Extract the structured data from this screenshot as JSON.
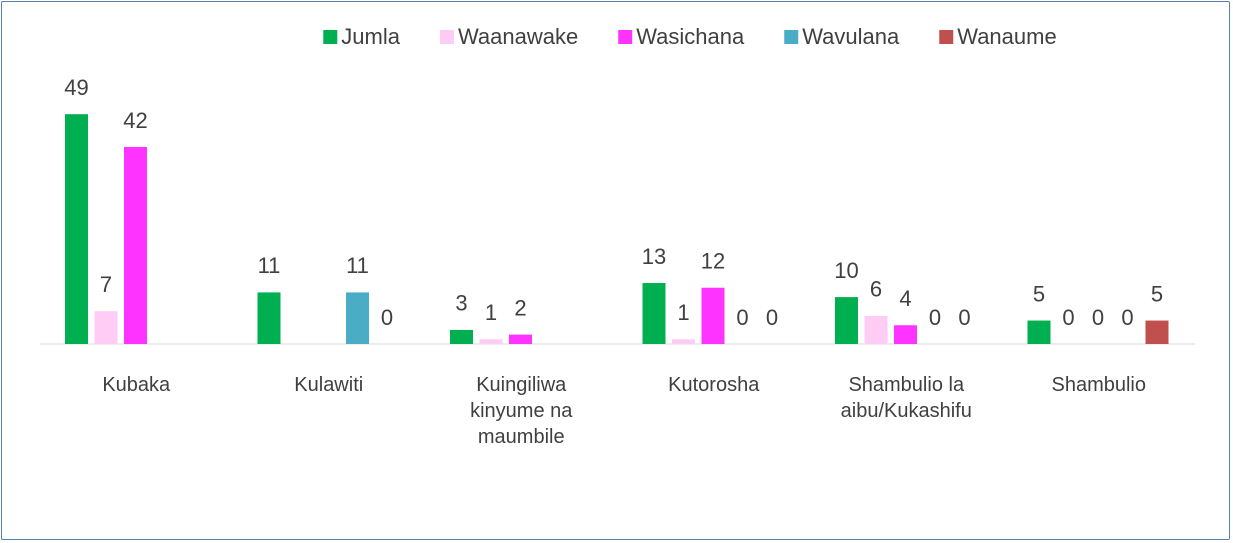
{
  "chart_data": {
    "type": "bar",
    "categories": [
      "Kubaka",
      "Kulawiti",
      "Kuingiliwa kinyume na maumbile",
      "Kutorosha",
      "Shambulio la aibu/Kukashifu",
      "Shambulio"
    ],
    "series": [
      {
        "name": "Jumla",
        "color": "#00b050",
        "values": [
          49,
          11,
          3,
          13,
          10,
          5
        ]
      },
      {
        "name": "Waanawake",
        "color": "#ffccf5",
        "values": [
          7,
          null,
          1,
          1,
          6,
          0
        ]
      },
      {
        "name": "Wasichana",
        "color": "#ff33ff",
        "values": [
          42,
          null,
          2,
          12,
          4,
          0
        ]
      },
      {
        "name": "Wavulana",
        "color": "#4bacc6",
        "values": [
          null,
          11,
          null,
          0,
          0,
          0
        ]
      },
      {
        "name": "Wanaume",
        "color": "#c0504d",
        "values": [
          null,
          0,
          null,
          0,
          0,
          5
        ]
      }
    ],
    "ylim": [
      0,
      50
    ],
    "legend": "top"
  }
}
